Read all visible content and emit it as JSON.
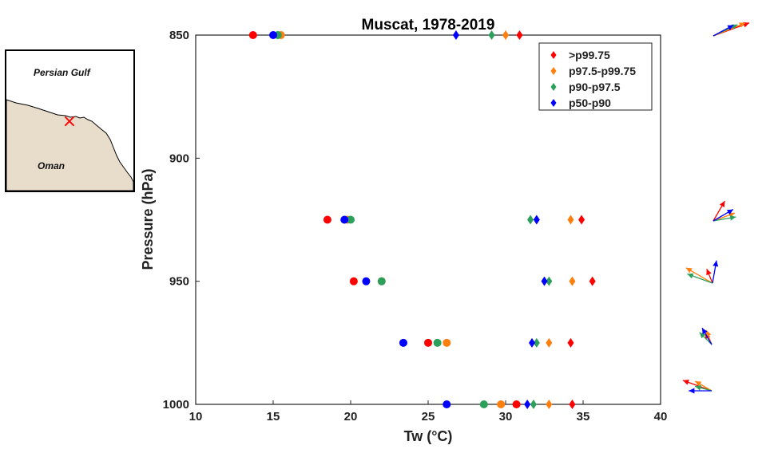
{
  "chart_data": {
    "type": "scatter",
    "title": "Muscat, 1978-2019",
    "xlabel": "Tw (°C)",
    "ylabel": "Pressure (hPa)",
    "xlim": [
      10,
      40
    ],
    "ylim": [
      850,
      1000
    ],
    "y_reversed": true,
    "x_ticks": [
      "10",
      "15",
      "20",
      "25",
      "30",
      "35",
      "40"
    ],
    "y_ticks": [
      "850",
      "900",
      "950",
      "1000"
    ],
    "legend_position": "top-right",
    "grid": false,
    "legend": [
      {
        "label": ">p99.75",
        "color": "#ff0000"
      },
      {
        "label": "p97.5-p99.75",
        "color": "#ff7f0e"
      },
      {
        "label": "p90-p97.5",
        "color": "#2ca05a"
      },
      {
        "label": "p50-p90",
        "color": "#0000ff"
      }
    ],
    "pressure_levels": [
      850,
      925,
      950,
      975,
      1000
    ],
    "series": [
      {
        "name": ">p99.75",
        "color": "#ff0000",
        "circle_x": [
          13.7,
          18.5,
          20.2,
          25.0,
          30.7
        ],
        "diamond_x": [
          30.9,
          34.9,
          35.6,
          34.2,
          34.3
        ]
      },
      {
        "name": "p97.5-p99.75",
        "color": "#ff7f0e",
        "circle_x": [
          15.5,
          19.8,
          22.0,
          26.2,
          29.7
        ],
        "diamond_x": [
          30.0,
          34.2,
          34.3,
          32.8,
          32.8
        ]
      },
      {
        "name": "p90-p97.5",
        "color": "#2ca05a",
        "circle_x": [
          15.3,
          20.0,
          22.0,
          25.6,
          28.6
        ],
        "diamond_x": [
          29.1,
          31.6,
          32.8,
          32.0,
          31.8
        ]
      },
      {
        "name": "p50-p90",
        "color": "#0000ff",
        "circle_x": [
          15.0,
          19.6,
          21.0,
          23.4,
          26.2
        ],
        "diamond_x": [
          26.8,
          32.0,
          32.5,
          31.7,
          31.4
        ]
      }
    ]
  },
  "inset_map": {
    "gulf_label": "Persian Gulf",
    "land_label": "Oman",
    "land_color": "#e8dccb",
    "marker": "×",
    "marker_color": "#ff0000"
  },
  "wind_arrows": {
    "levels": [
      850,
      925,
      950,
      975,
      1000
    ],
    "series_angles_deg": [
      [
        20,
        60,
        112,
        120,
        160
      ],
      [
        22,
        20,
        150,
        110,
        150
      ],
      [
        25,
        10,
        160,
        135,
        165
      ],
      [
        28,
        30,
        80,
        120,
        180
      ]
    ],
    "series_speed": [
      [
        1.0,
        0.6,
        0.4,
        0.35,
        0.8
      ],
      [
        0.9,
        0.6,
        0.8,
        0.4,
        0.5
      ],
      [
        0.7,
        0.6,
        0.7,
        0.45,
        0.45
      ],
      [
        0.6,
        0.6,
        0.6,
        0.5,
        0.6
      ]
    ]
  }
}
